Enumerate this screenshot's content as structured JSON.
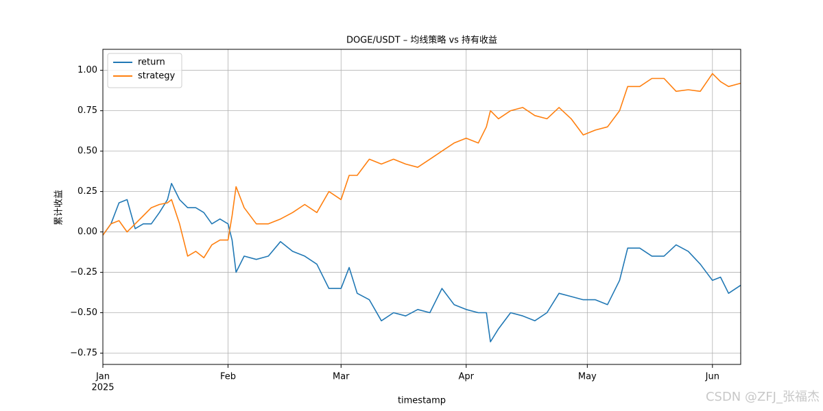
{
  "chart_data": {
    "type": "line",
    "title": "DOGE/USDT – 均线策略 vs 持有收益",
    "x_label": "timestamp",
    "y_label": "累计收益",
    "watermark": "CSDN @ZFJ_张福杰",
    "legend": "upper left",
    "grid": true,
    "xlim": [
      "2025-01-01",
      "2025-06-08"
    ],
    "xticks": [
      {
        "value": "2025-01-01",
        "label": "Jan",
        "sublabel": "2025"
      },
      {
        "value": "2025-02-01",
        "label": "Feb"
      },
      {
        "value": "2025-03-01",
        "label": "Mar"
      },
      {
        "value": "2025-04-01",
        "label": "Apr"
      },
      {
        "value": "2025-05-01",
        "label": "May"
      },
      {
        "value": "2025-06-01",
        "label": "Jun"
      }
    ],
    "ylim": [
      -0.82,
      1.13
    ],
    "yticks": [
      {
        "value": -0.75,
        "label": "−0.75"
      },
      {
        "value": -0.5,
        "label": "−0.50"
      },
      {
        "value": -0.25,
        "label": "−0.25"
      },
      {
        "value": 0,
        "label": "0.00"
      },
      {
        "value": 0.25,
        "label": "0.25"
      },
      {
        "value": 0.5,
        "label": "0.50"
      },
      {
        "value": 0.75,
        "label": "0.75"
      },
      {
        "value": 1,
        "label": "1.00"
      }
    ],
    "x": [
      "2025-01-01",
      "2025-01-03",
      "2025-01-05",
      "2025-01-07",
      "2025-01-09",
      "2025-01-11",
      "2025-01-13",
      "2025-01-15",
      "2025-01-17",
      "2025-01-18",
      "2025-01-20",
      "2025-01-22",
      "2025-01-24",
      "2025-01-26",
      "2025-01-28",
      "2025-01-30",
      "2025-02-01",
      "2025-02-02",
      "2025-02-03",
      "2025-02-05",
      "2025-02-08",
      "2025-02-11",
      "2025-02-14",
      "2025-02-17",
      "2025-02-20",
      "2025-02-23",
      "2025-02-26",
      "2025-03-01",
      "2025-03-03",
      "2025-03-05",
      "2025-03-08",
      "2025-03-11",
      "2025-03-14",
      "2025-03-17",
      "2025-03-20",
      "2025-03-23",
      "2025-03-26",
      "2025-03-29",
      "2025-04-01",
      "2025-04-04",
      "2025-04-06",
      "2025-04-07",
      "2025-04-09",
      "2025-04-12",
      "2025-04-15",
      "2025-04-18",
      "2025-04-21",
      "2025-04-24",
      "2025-04-27",
      "2025-04-30",
      "2025-05-03",
      "2025-05-06",
      "2025-05-09",
      "2025-05-11",
      "2025-05-14",
      "2025-05-17",
      "2025-05-20",
      "2025-05-23",
      "2025-05-26",
      "2025-05-29",
      "2025-06-01",
      "2025-06-03",
      "2025-06-05",
      "2025-06-08"
    ],
    "series": [
      {
        "name": "return",
        "color": "#1f77b4",
        "values": [
          -0.02,
          0.05,
          0.18,
          0.2,
          0.02,
          0.05,
          0.05,
          0.12,
          0.2,
          0.3,
          0.2,
          0.15,
          0.15,
          0.12,
          0.05,
          0.08,
          0.05,
          -0.05,
          -0.25,
          -0.15,
          -0.17,
          -0.15,
          -0.06,
          -0.12,
          -0.15,
          -0.2,
          -0.35,
          -0.35,
          -0.22,
          -0.38,
          -0.42,
          -0.55,
          -0.5,
          -0.52,
          -0.48,
          -0.5,
          -0.35,
          -0.45,
          -0.48,
          -0.5,
          -0.5,
          -0.68,
          -0.6,
          -0.5,
          -0.52,
          -0.55,
          -0.5,
          -0.38,
          -0.4,
          -0.42,
          -0.42,
          -0.45,
          -0.3,
          -0.1,
          -0.1,
          -0.15,
          -0.15,
          -0.08,
          -0.12,
          -0.2,
          -0.3,
          -0.28,
          -0.38,
          -0.33
        ]
      },
      {
        "name": "strategy",
        "color": "#ff7f0e",
        "values": [
          -0.02,
          0.05,
          0.07,
          0.0,
          0.05,
          0.1,
          0.15,
          0.17,
          0.18,
          0.2,
          0.05,
          -0.15,
          -0.12,
          -0.16,
          -0.08,
          -0.05,
          -0.05,
          0.1,
          0.28,
          0.15,
          0.05,
          0.05,
          0.08,
          0.12,
          0.17,
          0.12,
          0.25,
          0.2,
          0.35,
          0.35,
          0.45,
          0.42,
          0.45,
          0.42,
          0.4,
          0.45,
          0.5,
          0.55,
          0.58,
          0.55,
          0.65,
          0.75,
          0.7,
          0.75,
          0.77,
          0.72,
          0.7,
          0.77,
          0.7,
          0.6,
          0.63,
          0.65,
          0.75,
          0.9,
          0.9,
          0.95,
          0.95,
          0.87,
          0.88,
          0.87,
          0.98,
          0.93,
          0.9,
          0.92
        ]
      }
    ]
  }
}
